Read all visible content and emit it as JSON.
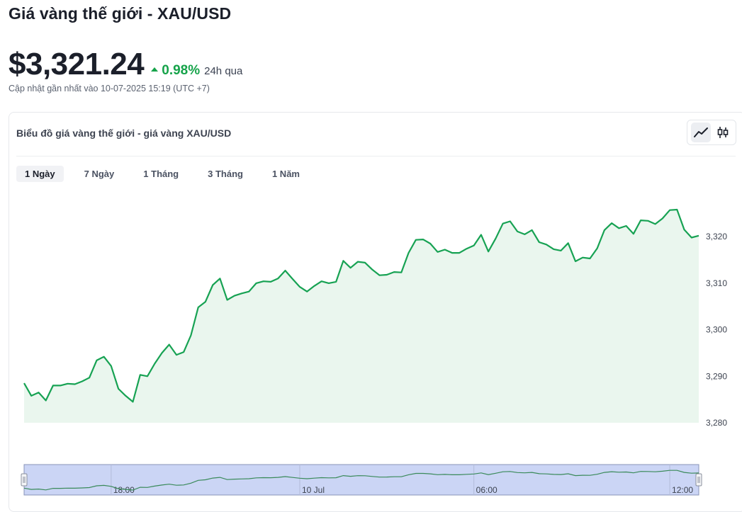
{
  "header": {
    "title": "Giá vàng thế giới - XAU/USD",
    "price": "$3,321.24",
    "change_pct": "0.98%",
    "change_period": "24h qua",
    "updated": "Cập nhật gần nhất vào 10-07-2025 15:19 (UTC +7)"
  },
  "chart_card": {
    "title": "Biểu đồ giá vàng thế giới - giá vàng XAU/USD",
    "chart_types": [
      {
        "icon": "line-chart-icon",
        "active": true
      },
      {
        "icon": "candlestick-chart-icon",
        "active": false
      }
    ],
    "ranges": [
      {
        "label": "1 Ngày",
        "active": true
      },
      {
        "label": "7 Ngày",
        "active": false
      },
      {
        "label": "1 Tháng",
        "active": false
      },
      {
        "label": "3 Tháng",
        "active": false
      },
      {
        "label": "1 Năm",
        "active": false
      }
    ]
  },
  "colors": {
    "up": "#16a34a",
    "line": "#17a253",
    "area": "#eaf6ee",
    "navigator_fill": "#cbd5f5",
    "navigator_border": "#8a94b8"
  },
  "chart_data": {
    "type": "area",
    "ylim": [
      3280,
      3329
    ],
    "yticks": [
      "3,280",
      "3,290",
      "3,300",
      "3,310",
      "3,320"
    ],
    "ytick_values": [
      3280,
      3290,
      3300,
      3310,
      3320
    ],
    "navigator_labels": [
      "18:00",
      "10 Jul",
      "06:00",
      "12:00"
    ],
    "navigator_label_idx": [
      12,
      38,
      62,
      89
    ],
    "values": [
      3288.5,
      3285.8,
      3286.5,
      3284.8,
      3288.0,
      3288.0,
      3288.4,
      3288.3,
      3288.9,
      3289.7,
      3293.4,
      3294.2,
      3292.2,
      3287.3,
      3285.8,
      3284.5,
      3290.3,
      3290.0,
      3292.7,
      3295.0,
      3296.8,
      3294.6,
      3295.2,
      3298.8,
      3304.8,
      3306.0,
      3309.6,
      3311.0,
      3306.4,
      3307.3,
      3307.8,
      3308.2,
      3310.0,
      3310.4,
      3310.3,
      3311.0,
      3312.7,
      3310.9,
      3309.2,
      3308.2,
      3309.4,
      3310.4,
      3310.0,
      3310.3,
      3314.8,
      3313.3,
      3314.6,
      3314.4,
      3312.9,
      3311.7,
      3311.8,
      3312.4,
      3312.3,
      3316.5,
      3319.3,
      3319.4,
      3318.5,
      3316.7,
      3317.2,
      3316.5,
      3316.5,
      3317.4,
      3318.1,
      3320.4,
      3316.8,
      3319.6,
      3322.8,
      3323.3,
      3321.1,
      3320.5,
      3321.4,
      3318.8,
      3318.3,
      3317.3,
      3317.0,
      3318.6,
      3314.7,
      3315.5,
      3315.3,
      3317.5,
      3321.4,
      3322.9,
      3321.8,
      3322.3,
      3320.6,
      3323.5,
      3323.4,
      3322.7,
      3323.9,
      3325.7,
      3325.8,
      3321.5,
      3319.8,
      3320.2
    ]
  }
}
